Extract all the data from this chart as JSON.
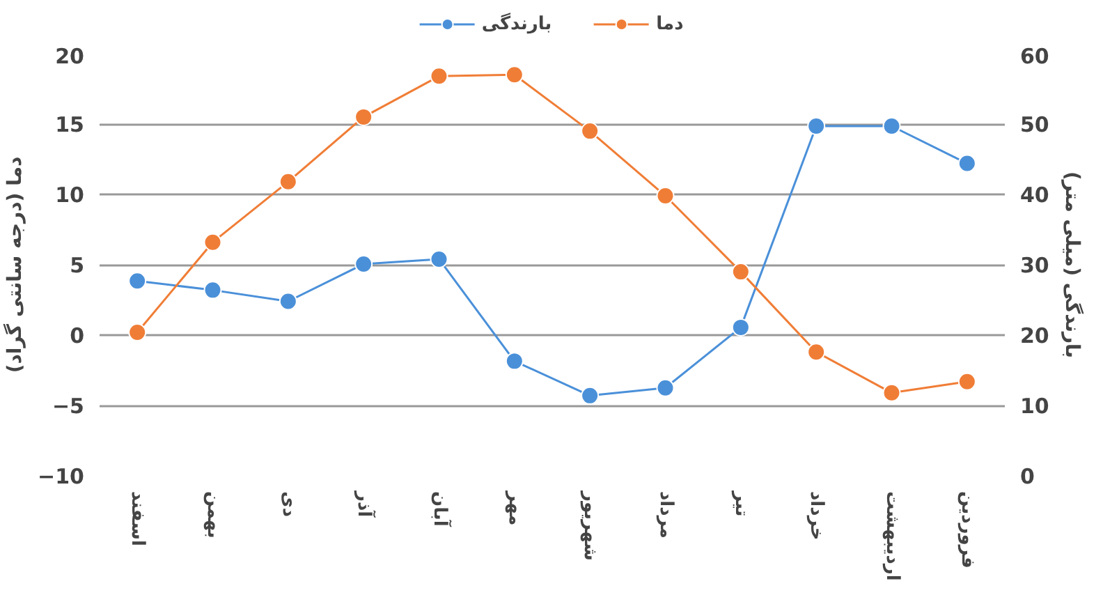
{
  "chart_data": {
    "type": "line",
    "categories": [
      "اسفند",
      "بهمن",
      "دی",
      "آذر",
      "آبان",
      "مهر",
      "شهریور",
      "مرداد",
      "تیر",
      "خرداد",
      "اردیبهشت",
      "فروردین"
    ],
    "ylabel": "دما (درجه سانتی گراد)",
    "y2label": "بارندگی (میلی متر)",
    "ylim": [
      -10,
      20
    ],
    "yticks": [
      -10,
      -5,
      0,
      5,
      10,
      15,
      20
    ],
    "y2lim": [
      0,
      60
    ],
    "y2ticks": [
      0,
      10,
      20,
      30,
      40,
      50,
      60
    ],
    "grid": "y",
    "legend": "top",
    "marker": "circle",
    "series": [
      {
        "name": "بارندگی",
        "color": "#4a90d9",
        "axis": "y2",
        "values": [
          27.7,
          26.4,
          24.8,
          30.1,
          30.8,
          16.3,
          11.4,
          12.5,
          21.1,
          49.7,
          49.7,
          44.4
        ]
      },
      {
        "name": "دما",
        "color": "#f07d36",
        "values": [
          0.2,
          6.6,
          10.9,
          15.5,
          18.4,
          18.5,
          14.5,
          9.9,
          4.5,
          -1.2,
          -4.1,
          -3.3
        ]
      }
    ]
  }
}
